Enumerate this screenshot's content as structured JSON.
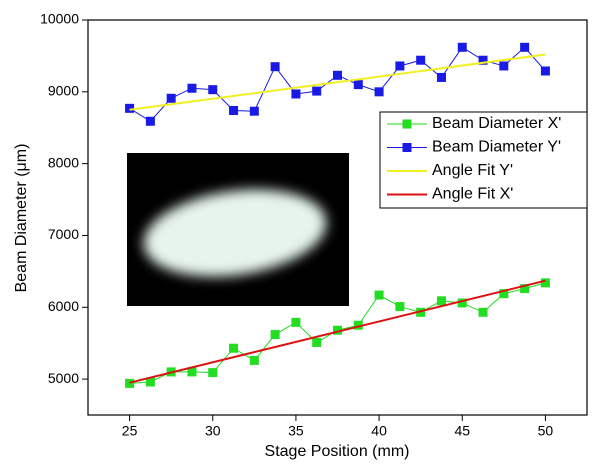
{
  "chart_data": {
    "type": "line",
    "x_label": "Stage Position (mm)",
    "y_label": "Beam Diameter (μm)",
    "xlim": [
      22.5,
      52.5
    ],
    "xticks": [
      25,
      30,
      35,
      40,
      45,
      50
    ],
    "ylim": [
      4500,
      10000
    ],
    "yticks": [
      5000,
      6000,
      7000,
      8000,
      9000,
      10000
    ],
    "legend_position": "right",
    "x": [
      25,
      26.25,
      27.5,
      28.75,
      30,
      31.25,
      32.5,
      33.75,
      35,
      36.25,
      37.5,
      38.75,
      40,
      41.25,
      42.5,
      43.75,
      45,
      46.25,
      47.5,
      48.75,
      50
    ],
    "series": [
      {
        "name": "Beam Diameter X'",
        "color": "#22dd22",
        "marker": "square",
        "values": [
          4940,
          4960,
          5100,
          5100,
          5090,
          5430,
          5260,
          5620,
          5790,
          5510,
          5680,
          5750,
          6170,
          6010,
          5930,
          6090,
          6060,
          5930,
          6190,
          6260,
          6340
        ]
      },
      {
        "name": "Beam Diameter Y'",
        "color": "#1a1ae6",
        "marker": "square",
        "values": [
          8770,
          8590,
          8910,
          9050,
          9030,
          8740,
          8730,
          9350,
          8970,
          9010,
          9230,
          9100,
          9000,
          9360,
          9440,
          9200,
          9620,
          9440,
          9360,
          9620,
          9290
        ]
      },
      {
        "name": "Angle Fit Y'",
        "color": "#f0f020",
        "x": [
          25,
          50
        ],
        "values": [
          8750,
          9520
        ]
      },
      {
        "name": "Angle Fit X'",
        "color": "#dd1111",
        "x": [
          25,
          50
        ],
        "values": [
          4950,
          6370
        ]
      }
    ]
  }
}
